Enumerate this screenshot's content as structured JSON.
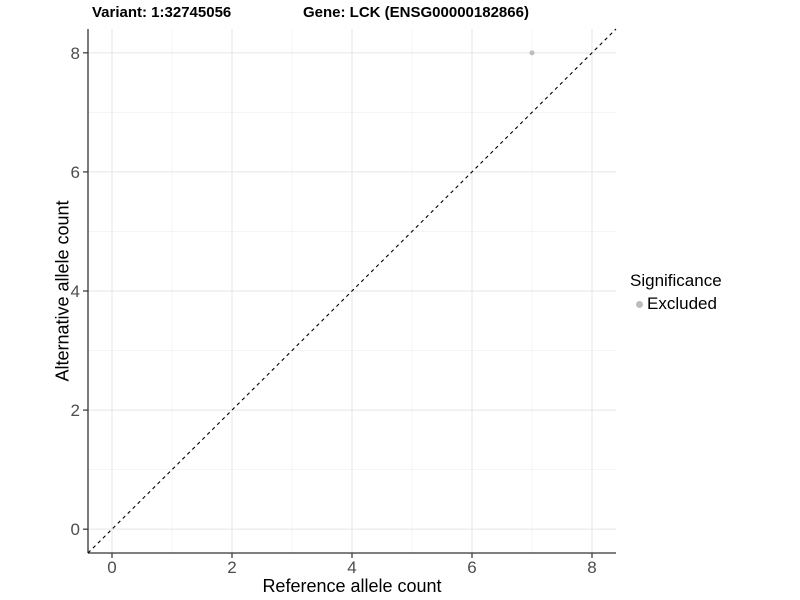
{
  "header": {
    "variant_title": "Variant: 1:32745056",
    "gene_title": "Gene: LCK (ENSG00000182866)"
  },
  "chart_data": {
    "type": "scatter",
    "xlabel": "Reference allele count",
    "ylabel": "Alternative allele count",
    "xlim": [
      -0.4,
      8.4
    ],
    "ylim": [
      -0.4,
      8.4
    ],
    "xticks": [
      0,
      2,
      4,
      6,
      8
    ],
    "yticks": [
      0,
      2,
      4,
      6,
      8
    ],
    "xticks_minor": [
      1,
      3,
      5,
      7
    ],
    "yticks_minor": [
      1,
      3,
      5,
      7
    ],
    "grid": "on",
    "points": [
      {
        "x": 7,
        "y": 8,
        "series": "Excluded"
      }
    ],
    "identity_line": {
      "style": "dashed",
      "from": [
        -0.4,
        -0.4
      ],
      "to": [
        8.4,
        8.4
      ],
      "color": "#000000"
    },
    "legend": {
      "title": "Significance",
      "position": "right",
      "items": [
        {
          "label": "Excluded",
          "color": "#bdbdbd"
        }
      ]
    },
    "colors": {
      "grid_major": "#e5e5e5",
      "grid_minor": "#f2f2f2",
      "axis_line": "#333333",
      "tick_label": "#4d4d4d",
      "point": "#bdbdbd"
    }
  }
}
